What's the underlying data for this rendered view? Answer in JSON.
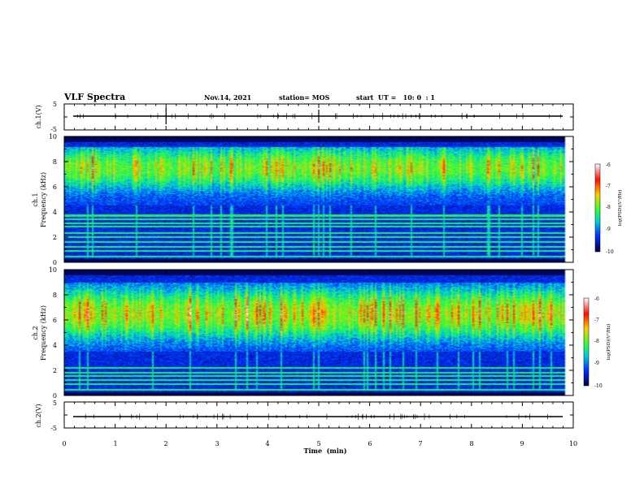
{
  "header": {
    "title": "VLF Spectra",
    "date": "Nov.14, 2021",
    "station": "station= MOS",
    "start": "start  UT =   10: 0  : 1"
  },
  "xaxis": {
    "label": "Time  (min)",
    "ticks": [
      "0",
      "1",
      "2",
      "3",
      "4",
      "5",
      "6",
      "7",
      "8",
      "9",
      "10"
    ]
  },
  "panels": {
    "ch1_wave": {
      "ylabel": "ch.1(V)",
      "ticks": [
        "5",
        "-5"
      ]
    },
    "ch1_spec": {
      "ylabel_1": "ch.1",
      "ylabel_2": "Frequency (kHz)",
      "ticks": [
        "10",
        "8",
        "6",
        "4",
        "2",
        "0"
      ]
    },
    "ch2_spec": {
      "ylabel_1": "ch.2",
      "ylabel_2": "Frequency (kHz)",
      "ticks": [
        "10",
        "8",
        "6",
        "4",
        "2",
        "0"
      ]
    },
    "ch2_wave": {
      "ylabel": "ch.2(V)",
      "ticks": [
        "5",
        "-5"
      ]
    }
  },
  "colorbar": {
    "label": "log(PSD)(V²/Hz)",
    "ticks": [
      "-6",
      "-7",
      "-8",
      "-9",
      "-10"
    ],
    "colors": [
      "#ffffff",
      "#ff1000",
      "#ffcc00",
      "#33ff33",
      "#00ccdd",
      "#0030ff",
      "#000040"
    ]
  },
  "chart_data": [
    {
      "type": "line",
      "name": "ch.1 waveform",
      "ylabel": "ch.1(V)",
      "ylim": [
        -5,
        5
      ],
      "xlim": [
        0,
        10
      ],
      "x": [
        0,
        10
      ],
      "y": [
        0,
        0
      ]
    },
    {
      "type": "heatmap",
      "ylabel": "Frequency (kHz)",
      "xlabel": "Time  (min)",
      "xlim": [
        0,
        10
      ],
      "ylim": [
        0,
        10
      ],
      "data_xlim": [
        0,
        9.85
      ],
      "zlim": [
        -10,
        -6
      ],
      "zlabel": "log(PSD)(V²/Hz)",
      "background_level": -9.4,
      "hiss_band": {
        "low_khz": 4.5,
        "high_khz": 9.2,
        "peak_khz": 7.5,
        "peak_level": -7.2
      },
      "narrowband_lines_khz": [
        0.4,
        0.9,
        1.2,
        1.6,
        2.0,
        2.3,
        2.8,
        3.1,
        3.4,
        3.7
      ]
    },
    {
      "type": "heatmap",
      "ylabel": "Frequency (kHz)",
      "xlabel": "Time  (min)",
      "xlim": [
        0,
        10
      ],
      "ylim": [
        0,
        10
      ],
      "data_xlim": [
        0,
        9.85
      ],
      "zlim": [
        -10,
        -6
      ],
      "zlabel": "log(PSD)(V²/Hz)",
      "background_level": -9.4,
      "hiss_band": {
        "low_khz": 3.5,
        "high_khz": 9.0,
        "peak_khz": 6.5,
        "peak_level": -6.9
      },
      "narrowband_lines_khz": [
        0.4,
        0.9,
        1.2,
        1.5,
        1.8,
        2.2
      ]
    },
    {
      "type": "line",
      "name": "ch.2 waveform",
      "ylabel": "ch.2(V)",
      "ylim": [
        -5,
        5
      ],
      "xlim": [
        0,
        10
      ],
      "x": [
        0,
        10
      ],
      "y": [
        0,
        0
      ]
    }
  ]
}
